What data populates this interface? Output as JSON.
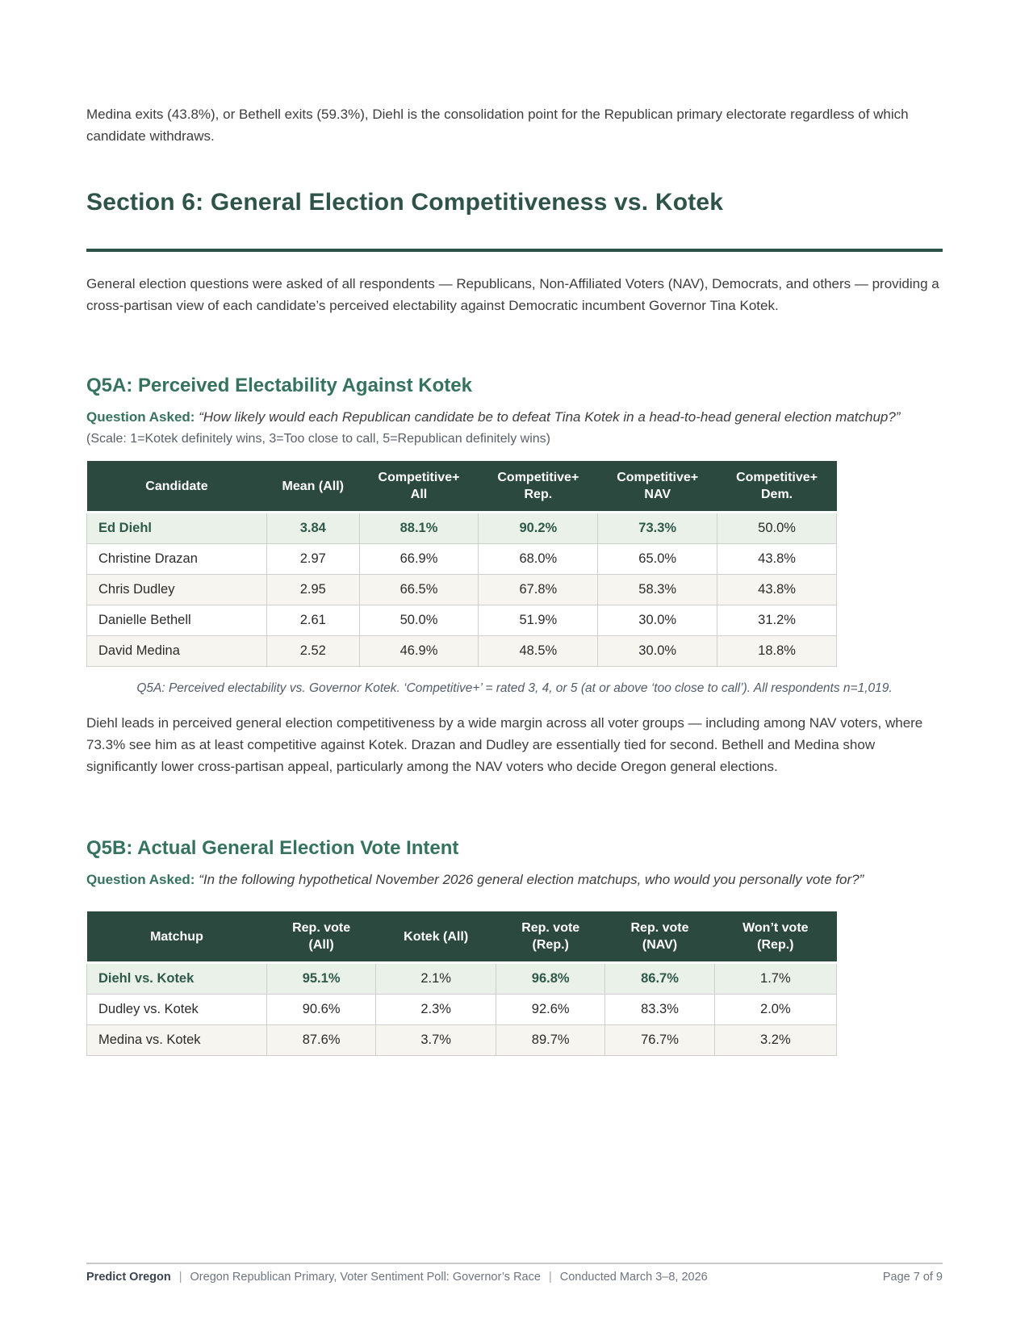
{
  "intro_paragraph": "Medina exits (43.8%), or Bethell exits (59.3%), Diehl is the consolidation point for the Republican primary electorate regardless of which candidate withdraws.",
  "section": {
    "title": "Section 6: General Election Competitiveness vs. Kotek",
    "intro": "General election questions were asked of all respondents — Republicans, Non-Affiliated Voters (NAV), Democrats, and others — providing a cross-partisan view of each candidate’s perceived electability against Democratic incumbent Governor Tina Kotek."
  },
  "q5a": {
    "heading": "Q5A: Perceived Electability Against Kotek",
    "question_label": "Question Asked:",
    "question": "“How likely would each Republican candidate be to defeat Tina Kotek in a head-to-head general election matchup?”",
    "scale_note": "(Scale: 1=Kotek definitely wins, 3=Too close to call, 5=Republican definitely wins)",
    "table": {
      "headers": [
        "Candidate",
        "Mean (All)",
        "Competitive+\nAll",
        "Competitive+\nRep.",
        "Competitive+\nNAV",
        "Competitive+\nDem."
      ],
      "rows": [
        {
          "cells": [
            "Ed Diehl",
            "3.84",
            "88.1%",
            "90.2%",
            "73.3%",
            "50.0%"
          ],
          "highlight": true,
          "green_cells": [
            0,
            1,
            2,
            3,
            4
          ]
        },
        {
          "cells": [
            "Christine Drazan",
            "2.97",
            "66.9%",
            "68.0%",
            "65.0%",
            "43.8%"
          ],
          "highlight": false,
          "green_cells": []
        },
        {
          "cells": [
            "Chris Dudley",
            "2.95",
            "66.5%",
            "67.8%",
            "58.3%",
            "43.8%"
          ],
          "highlight": false,
          "green_cells": []
        },
        {
          "cells": [
            "Danielle Bethell",
            "2.61",
            "50.0%",
            "51.9%",
            "30.0%",
            "31.2%"
          ],
          "highlight": false,
          "green_cells": []
        },
        {
          "cells": [
            "David Medina",
            "2.52",
            "46.9%",
            "48.5%",
            "30.0%",
            "18.8%"
          ],
          "highlight": false,
          "green_cells": []
        }
      ],
      "caption": "Q5A: Perceived electability vs. Governor Kotek. ‘Competitive+’ = rated 3, 4, or 5 (at or above ‘too close to call’). All respondents n=1,019."
    },
    "analysis": "Diehl leads in perceived general election competitiveness by a wide margin across all voter groups — including among NAV voters, where 73.3% see him as at least competitive against Kotek. Drazan and Dudley are essentially tied for second. Bethell and Medina show significantly lower cross-partisan appeal, particularly among the NAV voters who decide Oregon general elections."
  },
  "q5b": {
    "heading": "Q5B: Actual General Election Vote Intent",
    "question_label": "Question Asked:",
    "question": "“In the following hypothetical November 2026 general election matchups, who would you personally vote for?”",
    "table": {
      "headers": [
        "Matchup",
        "Rep. vote\n(All)",
        "Kotek (All)",
        "Rep. vote\n(Rep.)",
        "Rep. vote\n(NAV)",
        "Won’t vote\n(Rep.)"
      ],
      "rows": [
        {
          "cells": [
            "Diehl vs. Kotek",
            "95.1%",
            "2.1%",
            "96.8%",
            "86.7%",
            "1.7%"
          ],
          "highlight": true,
          "green_cells": [
            0,
            1,
            3,
            4
          ]
        },
        {
          "cells": [
            "Dudley vs. Kotek",
            "90.6%",
            "2.3%",
            "92.6%",
            "83.3%",
            "2.0%"
          ],
          "highlight": false,
          "green_cells": []
        },
        {
          "cells": [
            "Medina vs. Kotek",
            "87.6%",
            "3.7%",
            "89.7%",
            "76.7%",
            "3.2%"
          ],
          "highlight": false,
          "green_cells": []
        }
      ]
    }
  },
  "footer": {
    "brand": "Predict Oregon",
    "separator": "|",
    "doc_title": "Oregon Republican Primary, Voter Sentiment Poll: Governor’s Race",
    "conducted": "Conducted March 3–8, 2026",
    "page_info": "Page 7 of 9"
  },
  "colors": {
    "heading_green": "#36735e",
    "section_green": "#2e5349",
    "table_header_bg": "#2c4940",
    "highlight_row_bg": "#e9f1e9",
    "highlight_text": "#2f5a4b",
    "alt_row_bg": "#f7f5ef"
  }
}
